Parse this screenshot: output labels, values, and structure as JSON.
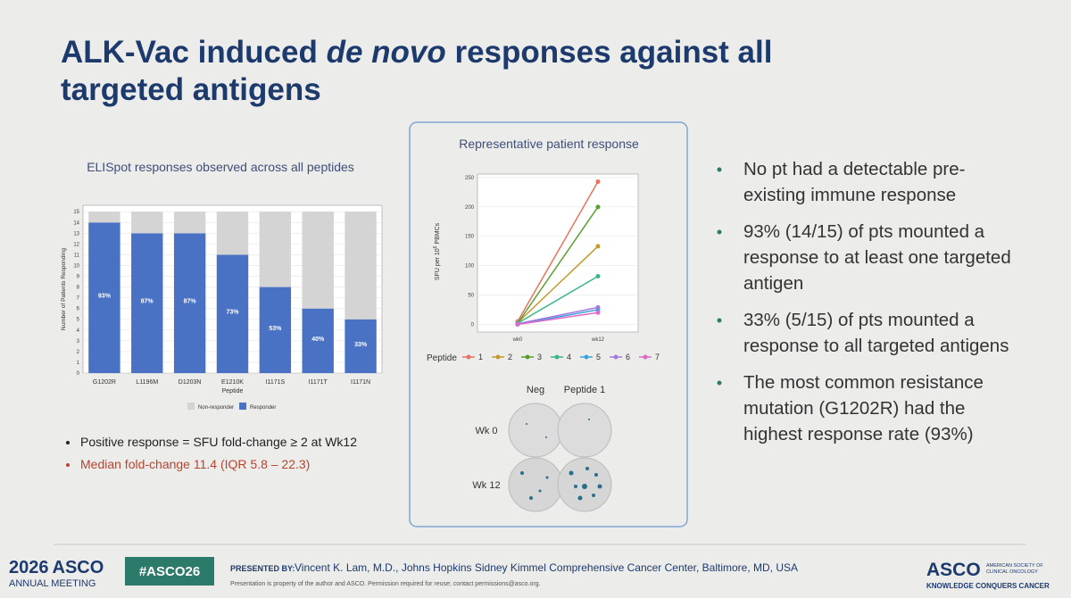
{
  "title_parts": [
    "ALK-Vac induced ",
    "de novo",
    " responses against all",
    "targeted antigens"
  ],
  "chart_data": [
    {
      "type": "bar",
      "stacked": true,
      "title": "ELISpot responses observed across all peptides",
      "x_label": "Peptide",
      "y_label": "Number of Patients Responding",
      "categories": [
        "G1202R",
        "L1196M",
        "D1203N",
        "E1210K",
        "I1171S",
        "I1171T",
        "I1171N"
      ],
      "series": [
        {
          "name": "Non-responder",
          "color": "#d4d4d4",
          "values": [
            1,
            2,
            2,
            4,
            7,
            9,
            10
          ]
        },
        {
          "name": "Responder",
          "color": "#4a72c4",
          "values": [
            14,
            13,
            13,
            11,
            8,
            6,
            5
          ],
          "percent_labels": [
            "93%",
            "87%",
            "87%",
            "73%",
            "53%",
            "40%",
            "33%"
          ]
        }
      ],
      "ylim": [
        0,
        15.6
      ],
      "yticks": [
        0,
        1,
        2,
        3,
        4,
        5,
        6,
        7,
        8,
        9,
        10,
        11,
        12,
        13,
        14,
        15
      ],
      "grid": true,
      "legend_position": "bottom"
    },
    {
      "type": "line",
      "title": "Representative patient response",
      "y_label_parts": [
        "SFU per 10",
        "6",
        " PBMCs"
      ],
      "categories": [
        "wk0",
        "wk12"
      ],
      "legend_title": "Peptide",
      "series": [
        {
          "name": "1",
          "color": "#e8735f",
          "values": [
            5,
            243
          ]
        },
        {
          "name": "2",
          "color": "#c49a2c",
          "values": [
            3,
            133
          ]
        },
        {
          "name": "3",
          "color": "#5a9e2f",
          "values": [
            2,
            200
          ]
        },
        {
          "name": "4",
          "color": "#3cb58a",
          "values": [
            2,
            82
          ]
        },
        {
          "name": "5",
          "color": "#3fa2d9",
          "values": [
            0,
            25
          ]
        },
        {
          "name": "6",
          "color": "#9e7be0",
          "values": [
            1,
            29
          ]
        },
        {
          "name": "7",
          "color": "#e068c8",
          "values": [
            0,
            20
          ]
        }
      ],
      "ylim": [
        -13,
        256
      ],
      "yticks": [
        0,
        50,
        100,
        150,
        200,
        250
      ],
      "grid": true,
      "legend_position": "bottom"
    }
  ],
  "wells": {
    "columns": [
      "Neg",
      "Peptide 1"
    ],
    "rows": [
      "Wk 0",
      "Wk 12"
    ]
  },
  "left_bullets": [
    [
      "Positive response = SFU fold-change ≥ 2 at Wk12"
    ],
    [
      "Median fold-change 11.4 (IQR 5.8 – 22.3)"
    ]
  ],
  "right_bullets": [
    [
      "No pt had a detectable pre-",
      "existing immune response"
    ],
    [
      "93% (14/15) of pts mounted a",
      "response to at least one targeted",
      "antigen"
    ],
    [
      "33% (5/15) of pts mounted a",
      "response to all targeted antigens"
    ],
    [
      "The most common resistance",
      "mutation (G1202R) had the",
      "highest response rate (93%)"
    ]
  ],
  "footer": {
    "meeting_year": "2026",
    "meeting_brand": "ASCO",
    "meeting_name": "ANNUAL MEETING",
    "hashtag": "#ASCO26",
    "presented_by": "PRESENTED BY:",
    "presenter": "Vincent K. Lam, M.D., Johns Hopkins Sidney Kimmel Comprehensive Cancer Center, Baltimore, MD, USA",
    "notice": "Presentation is property of the author and ASCO. Permission required for reuse; contact permissions@asco.org.",
    "logo": "ASCO",
    "society_line1": "AMERICAN SOCIETY OF",
    "society_line2": "CLINICAL ONCOLOGY",
    "tagline": "KNOWLEDGE CONQUERS CANCER"
  }
}
